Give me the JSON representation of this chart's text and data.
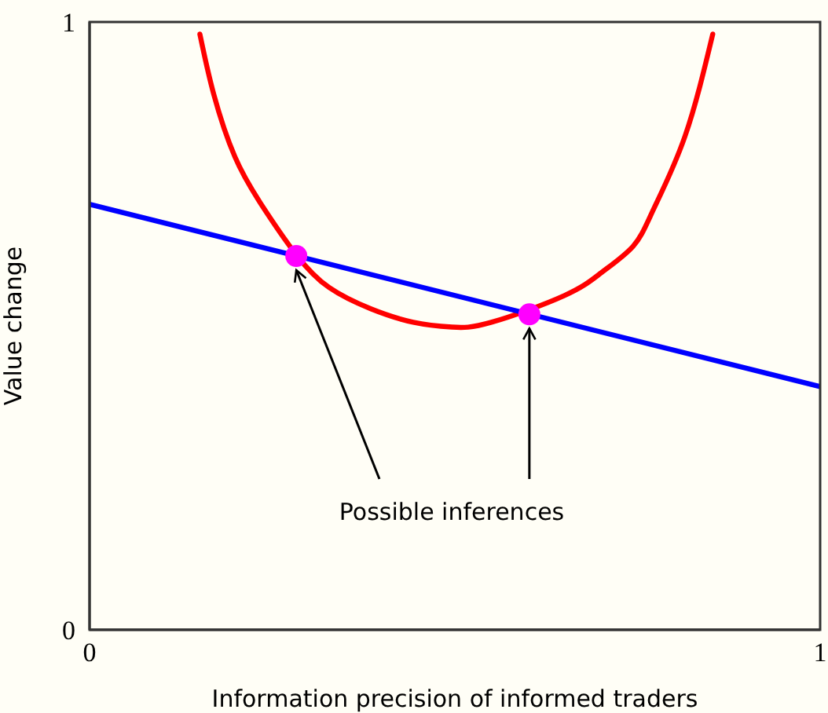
{
  "chart_data": {
    "type": "line",
    "xlabel": "Information precision of informed traders",
    "ylabel": "Value change",
    "xlim": [
      0,
      1
    ],
    "ylim": [
      0,
      1
    ],
    "xticks": [
      0,
      1
    ],
    "yticks": [
      0,
      1
    ],
    "marker": "none",
    "annotations": [
      {
        "text": "Possible inferences",
        "x": 0.283,
        "y": 0.615
      }
    ],
    "series": [
      {
        "color": "#ff0000",
        "x": [
          0.151,
          0.17,
          0.199,
          0.235,
          0.283,
          0.328,
          0.385,
          0.443,
          0.496,
          0.55,
          0.65,
          0.701,
          0.744,
          0.772,
          0.815,
          0.853
        ],
        "values": [
          0.98,
          0.881,
          0.778,
          0.7,
          0.617,
          0.563,
          0.528,
          0.506,
          0.498,
          0.506,
          0.55,
          0.588,
          0.631,
          0.692,
          0.812,
          0.98
        ]
      },
      {
        "color": "#0000ff",
        "x": [
          0,
          1
        ],
        "values": [
          0.7,
          0.4
        ]
      },
      {
        "type": "scatter",
        "color": "#ff00ff",
        "marker": "circle",
        "x": [
          0.283,
          0.602
        ],
        "values": [
          0.615,
          0.519
        ]
      }
    ]
  }
}
